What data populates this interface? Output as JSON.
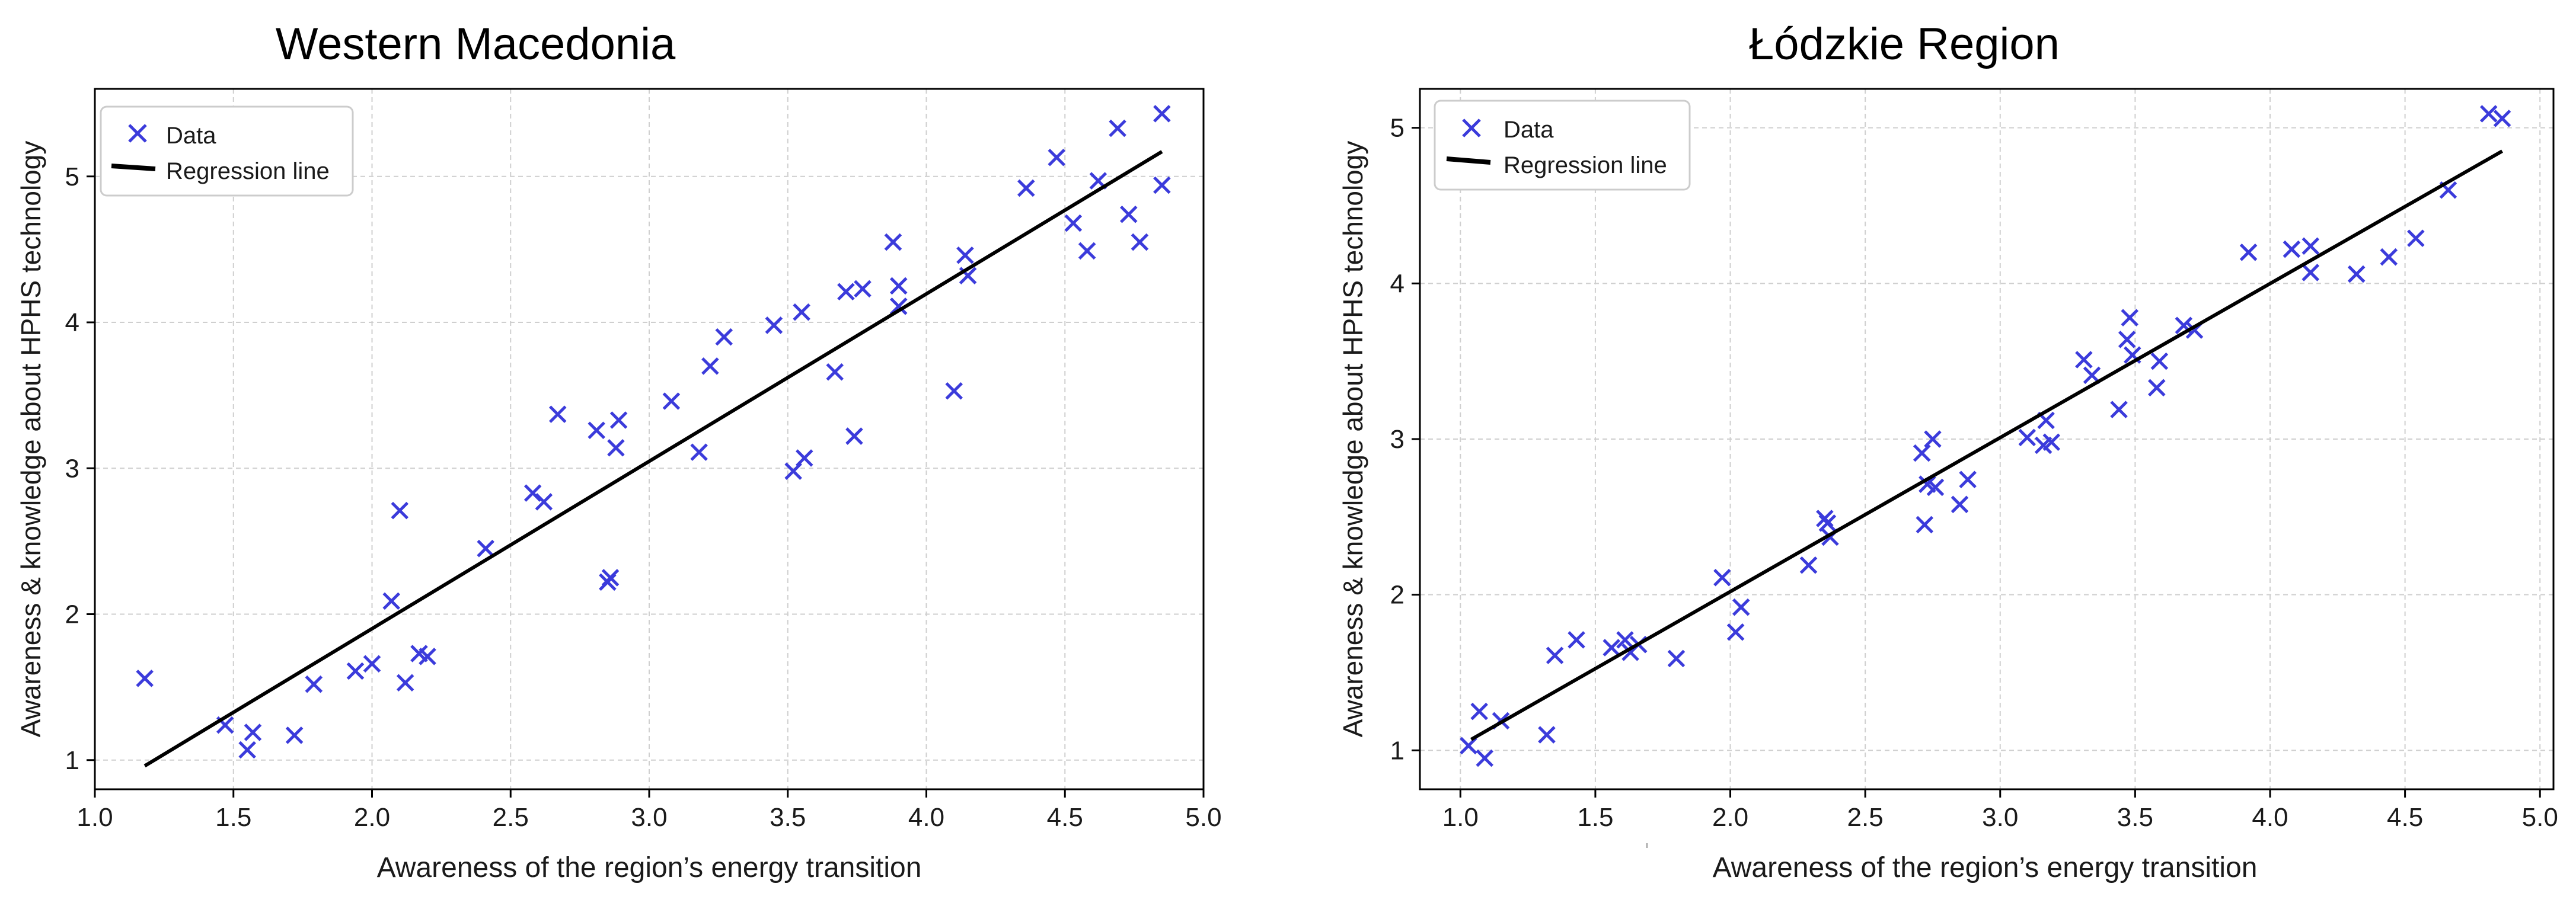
{
  "chart_data": [
    {
      "type": "scatter",
      "title": "Western Macedonia",
      "xlabel": "Awareness of the region’s energy transition",
      "ylabel": "Awareness & knowledge about HPHS technology",
      "xlim": [
        1.0,
        5.0
      ],
      "ylim": [
        0.8,
        5.6
      ],
      "xticks": [
        1.0,
        1.5,
        2.0,
        2.5,
        3.0,
        3.5,
        4.0,
        4.5,
        5.0
      ],
      "xtick_labels": [
        "1.0",
        "1.5",
        "2.0",
        "2.5",
        "3.0",
        "3.5",
        "4.0",
        "4.5",
        "5.0"
      ],
      "yticks": [
        1,
        2,
        3,
        4,
        5
      ],
      "ytick_labels": [
        "1",
        "2",
        "3",
        "4",
        "5"
      ],
      "grid": true,
      "legend": {
        "position": "top-left",
        "data_label": "Data",
        "line_label": "Regression line"
      },
      "series": [
        {
          "name": "Data",
          "marker": "x",
          "color": "#3b3bdb",
          "points": [
            [
              1.18,
              1.56
            ],
            [
              1.47,
              1.24
            ],
            [
              1.55,
              1.07
            ],
            [
              1.57,
              1.19
            ],
            [
              1.72,
              1.17
            ],
            [
              1.79,
              1.52
            ],
            [
              1.94,
              1.61
            ],
            [
              2.0,
              1.66
            ],
            [
              2.07,
              2.09
            ],
            [
              2.1,
              2.71
            ],
            [
              2.12,
              1.53
            ],
            [
              2.17,
              1.73
            ],
            [
              2.2,
              1.71
            ],
            [
              2.41,
              2.45
            ],
            [
              2.58,
              2.83
            ],
            [
              2.62,
              2.77
            ],
            [
              2.67,
              3.37
            ],
            [
              2.81,
              3.26
            ],
            [
              2.85,
              2.22
            ],
            [
              2.86,
              2.25
            ],
            [
              2.88,
              3.14
            ],
            [
              2.89,
              3.33
            ],
            [
              3.08,
              3.46
            ],
            [
              3.18,
              3.11
            ],
            [
              3.22,
              3.7
            ],
            [
              3.27,
              3.9
            ],
            [
              3.45,
              3.98
            ],
            [
              3.52,
              2.98
            ],
            [
              3.55,
              4.07
            ],
            [
              3.56,
              3.07
            ],
            [
              3.67,
              3.66
            ],
            [
              3.71,
              4.21
            ],
            [
              3.74,
              3.22
            ],
            [
              3.77,
              4.23
            ],
            [
              3.88,
              4.55
            ],
            [
              3.9,
              4.25
            ],
            [
              3.9,
              4.11
            ],
            [
              4.1,
              3.53
            ],
            [
              4.14,
              4.46
            ],
            [
              4.15,
              4.32
            ],
            [
              4.36,
              4.92
            ],
            [
              4.47,
              5.13
            ],
            [
              4.53,
              4.68
            ],
            [
              4.58,
              4.49
            ],
            [
              4.62,
              4.97
            ],
            [
              4.69,
              5.33
            ],
            [
              4.73,
              4.74
            ],
            [
              4.77,
              4.55
            ],
            [
              4.85,
              5.43
            ],
            [
              4.85,
              4.94
            ]
          ]
        },
        {
          "name": "Regression line",
          "type": "line",
          "color": "#000000",
          "x": [
            1.18,
            4.85
          ],
          "y": [
            0.96,
            5.17
          ]
        }
      ]
    },
    {
      "type": "scatter",
      "title": "Łódzkie Region",
      "xlabel": "Awareness of the region’s energy transition",
      "ylabel": "Awareness & knowledge about HPHS technology",
      "xlim": [
        0.85,
        5.05
      ],
      "ylim": [
        0.75,
        5.25
      ],
      "xticks": [
        1.0,
        1.5,
        2.0,
        2.5,
        3.0,
        3.5,
        4.0,
        4.5,
        5.0
      ],
      "xtick_labels": [
        "1.0",
        "1.5",
        "2.0",
        "2.5",
        "3.0",
        "3.5",
        "4.0",
        "4.5",
        "5.0"
      ],
      "yticks": [
        1,
        2,
        3,
        4,
        5
      ],
      "ytick_labels": [
        "1",
        "2",
        "3",
        "4",
        "5"
      ],
      "grid": true,
      "legend": {
        "position": "top-left",
        "data_label": "Data",
        "line_label": "Regression line"
      },
      "series": [
        {
          "name": "Data",
          "marker": "x",
          "color": "#3b3bdb",
          "points": [
            [
              1.03,
              1.03
            ],
            [
              1.07,
              1.25
            ],
            [
              1.09,
              0.95
            ],
            [
              1.15,
              1.19
            ],
            [
              1.32,
              1.1
            ],
            [
              1.35,
              1.61
            ],
            [
              1.43,
              1.71
            ],
            [
              1.56,
              1.66
            ],
            [
              1.61,
              1.71
            ],
            [
              1.63,
              1.63
            ],
            [
              1.66,
              1.68
            ],
            [
              1.8,
              1.59
            ],
            [
              1.97,
              2.11
            ],
            [
              2.02,
              1.76
            ],
            [
              2.04,
              1.92
            ],
            [
              2.29,
              2.19
            ],
            [
              2.35,
              2.49
            ],
            [
              2.36,
              2.46
            ],
            [
              2.37,
              2.37
            ],
            [
              2.71,
              2.91
            ],
            [
              2.72,
              2.45
            ],
            [
              2.73,
              2.71
            ],
            [
              2.75,
              3.0
            ],
            [
              2.76,
              2.69
            ],
            [
              2.85,
              2.58
            ],
            [
              2.88,
              2.74
            ],
            [
              3.1,
              3.01
            ],
            [
              3.16,
              2.96
            ],
            [
              3.17,
              3.12
            ],
            [
              3.19,
              2.98
            ],
            [
              3.31,
              3.51
            ],
            [
              3.34,
              3.41
            ],
            [
              3.44,
              3.19
            ],
            [
              3.47,
              3.64
            ],
            [
              3.48,
              3.78
            ],
            [
              3.49,
              3.54
            ],
            [
              3.58,
              3.33
            ],
            [
              3.59,
              3.5
            ],
            [
              3.68,
              3.73
            ],
            [
              3.72,
              3.7
            ],
            [
              3.92,
              4.2
            ],
            [
              4.08,
              4.22
            ],
            [
              4.15,
              4.24
            ],
            [
              4.15,
              4.07
            ],
            [
              4.32,
              4.06
            ],
            [
              4.44,
              4.17
            ],
            [
              4.54,
              4.29
            ],
            [
              4.66,
              4.6
            ],
            [
              4.81,
              5.09
            ],
            [
              4.86,
              5.06
            ]
          ]
        },
        {
          "name": "Regression line",
          "type": "line",
          "color": "#000000",
          "x": [
            1.04,
            4.86
          ],
          "y": [
            1.07,
            4.85
          ]
        }
      ]
    }
  ]
}
